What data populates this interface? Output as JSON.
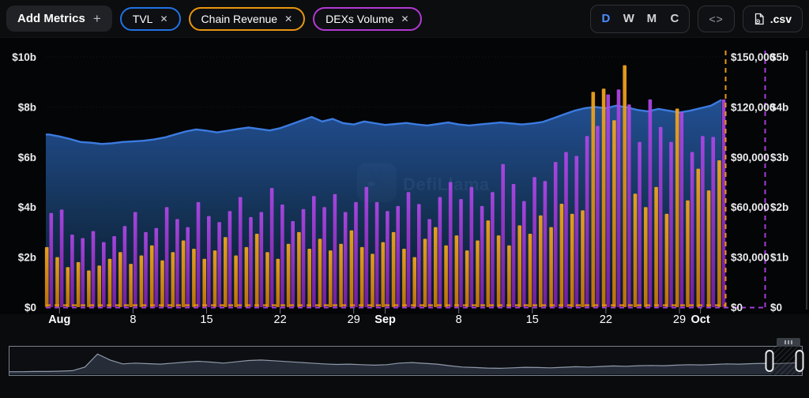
{
  "toolbar": {
    "add_metrics_label": "Add Metrics",
    "plus_label": "+",
    "pills": [
      {
        "label": "TVL",
        "close": "✕",
        "color": "#2172e5"
      },
      {
        "label": "Chain Revenue",
        "close": "✕",
        "color": "#e8960f"
      },
      {
        "label": "DEXs Volume",
        "close": "✕",
        "color": "#b339d4"
      }
    ],
    "intervals": [
      {
        "label": "D",
        "active": true
      },
      {
        "label": "W",
        "active": false
      },
      {
        "label": "M",
        "active": false
      },
      {
        "label": "C",
        "active": false
      }
    ],
    "embed_label": "<>",
    "csv_label": ".csv"
  },
  "chart_data": {
    "type": "combo",
    "interval": "daily",
    "watermark": "DefiLlama",
    "x_ticks": [
      {
        "index": 1,
        "label": "Aug",
        "bold": true
      },
      {
        "index": 8,
        "label": "8",
        "bold": false
      },
      {
        "index": 15,
        "label": "15",
        "bold": false
      },
      {
        "index": 22,
        "label": "22",
        "bold": false
      },
      {
        "index": 29,
        "label": "29",
        "bold": false
      },
      {
        "index": 32,
        "label": "Sep",
        "bold": true
      },
      {
        "index": 39,
        "label": "8",
        "bold": false
      },
      {
        "index": 46,
        "label": "15",
        "bold": false
      },
      {
        "index": 53,
        "label": "22",
        "bold": false
      },
      {
        "index": 60,
        "label": "29",
        "bold": false
      },
      {
        "index": 62,
        "label": "Oct",
        "bold": true
      }
    ],
    "axes": {
      "left": {
        "title": "TVL",
        "labels": [
          "$0",
          "$2b",
          "$4b",
          "$6b",
          "$8b",
          "$10b"
        ],
        "max": 10
      },
      "right1": {
        "title": "Chain Revenue",
        "labels": [
          "$0",
          "$30,000",
          "$60,000",
          "$90,000",
          "$120,000",
          "$150,000"
        ],
        "max": 150,
        "line_color": "#e8960f"
      },
      "right2": {
        "title": "DEXs Volume",
        "labels": [
          "$0",
          "$1b",
          "$2b",
          "$3b",
          "$4b",
          "$5b"
        ],
        "max": 5,
        "line_color": "#a33bd9"
      }
    },
    "series": [
      {
        "name": "TVL",
        "type": "area",
        "axis": "left",
        "unit": "$b",
        "color": "#3b7be0",
        "values": [
          6.9,
          6.82,
          6.72,
          6.6,
          6.57,
          6.52,
          6.55,
          6.6,
          6.62,
          6.65,
          6.7,
          6.78,
          6.9,
          7.02,
          7.1,
          7.05,
          6.98,
          7.05,
          7.12,
          7.18,
          7.12,
          7.06,
          7.15,
          7.3,
          7.45,
          7.6,
          7.42,
          7.52,
          7.35,
          7.3,
          7.42,
          7.35,
          7.28,
          7.32,
          7.36,
          7.3,
          7.26,
          7.32,
          7.38,
          7.3,
          7.26,
          7.3,
          7.34,
          7.38,
          7.34,
          7.3,
          7.34,
          7.4,
          7.55,
          7.7,
          7.85,
          7.95,
          8.0,
          7.95,
          8.05,
          7.98,
          7.88,
          7.82,
          7.92,
          7.85,
          7.78,
          7.85,
          7.95,
          8.05,
          8.28
        ]
      },
      {
        "name": "Chain Revenue",
        "type": "bar",
        "axis": "right1",
        "unit": "$k",
        "color": "#f0a013",
        "values": [
          36,
          30,
          24,
          27,
          22,
          25,
          29,
          33,
          26,
          31,
          37,
          28,
          33,
          40,
          35,
          29,
          34,
          42,
          31,
          36,
          44,
          33,
          29,
          38,
          45,
          35,
          41,
          34,
          38,
          46,
          36,
          32,
          39,
          45,
          35,
          30,
          41,
          48,
          37,
          43,
          34,
          40,
          52,
          43,
          37,
          49,
          44,
          55,
          48,
          62,
          56,
          58,
          129,
          131,
          112,
          145,
          68,
          60,
          72,
          56,
          119,
          64,
          83,
          70,
          88
        ]
      },
      {
        "name": "DEXs Volume",
        "type": "bar",
        "axis": "right2",
        "unit": "$b",
        "color": "#a838e0",
        "values": [
          1.88,
          1.95,
          1.45,
          1.38,
          1.52,
          1.3,
          1.42,
          1.62,
          1.9,
          1.5,
          1.58,
          2.0,
          1.76,
          1.6,
          2.1,
          1.82,
          1.7,
          1.92,
          2.2,
          1.8,
          1.9,
          2.38,
          2.05,
          1.72,
          1.96,
          2.22,
          2.0,
          2.26,
          1.9,
          2.1,
          2.4,
          2.1,
          1.92,
          2.02,
          2.3,
          2.06,
          1.76,
          2.2,
          2.5,
          2.16,
          2.4,
          2.02,
          2.3,
          2.86,
          2.46,
          2.12,
          2.6,
          2.52,
          2.9,
          3.1,
          3.02,
          3.42,
          3.62,
          4.25,
          4.35,
          4.05,
          3.3,
          4.15,
          3.6,
          3.3,
          3.9,
          3.1,
          3.42,
          3.4,
          4.15
        ]
      }
    ]
  },
  "brush": {
    "values": [
      0.1,
      0.1,
      0.11,
      0.11,
      0.12,
      0.14,
      0.28,
      0.78,
      0.55,
      0.4,
      0.43,
      0.41,
      0.39,
      0.43,
      0.47,
      0.5,
      0.47,
      0.43,
      0.48,
      0.53,
      0.55,
      0.52,
      0.49,
      0.46,
      0.43,
      0.4,
      0.38,
      0.39,
      0.37,
      0.35,
      0.37,
      0.43,
      0.45,
      0.42,
      0.39,
      0.33,
      0.28,
      0.26,
      0.24,
      0.23,
      0.25,
      0.27,
      0.26,
      0.25,
      0.27,
      0.29,
      0.28,
      0.3,
      0.32,
      0.31,
      0.33,
      0.34,
      0.33,
      0.35,
      0.37,
      0.36,
      0.38,
      0.4,
      0.39,
      0.41,
      0.42,
      0.41,
      0.43,
      0.44
    ]
  }
}
